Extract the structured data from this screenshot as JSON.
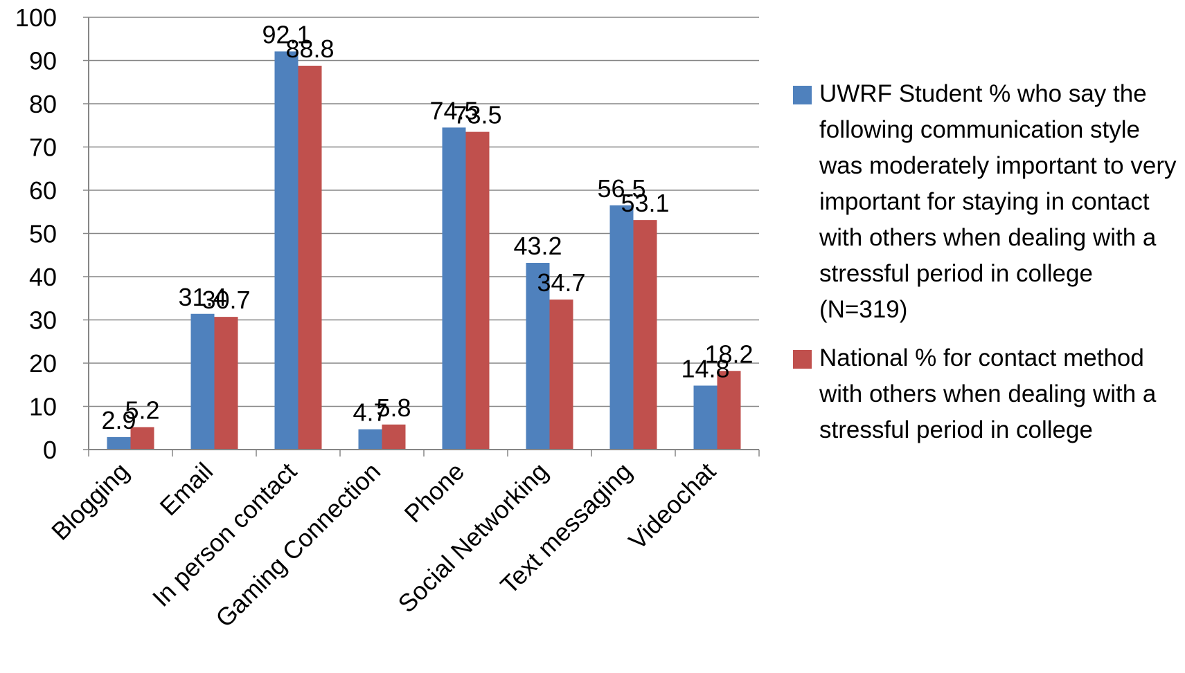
{
  "chart_data": {
    "type": "bar",
    "categories": [
      "Blogging",
      "Email",
      "In person contact",
      "Gaming Connection",
      "Phone",
      "Social Networking",
      "Text messaging",
      "Videochat"
    ],
    "series": [
      {
        "name": "UWRF Student % who say  the following communication style was moderately important to very important for staying in contact with others when dealing with a stressful period in college (N=319)",
        "color": "#4F81BD",
        "values": [
          2.9,
          31.4,
          92.1,
          4.7,
          74.5,
          43.2,
          56.5,
          14.8
        ]
      },
      {
        "name": "National % for contact method with others when dealing with a stressful period in college",
        "color": "#C0504D",
        "values": [
          5.2,
          30.7,
          88.8,
          5.8,
          73.5,
          34.7,
          53.1,
          18.2
        ]
      }
    ],
    "ylim": [
      0,
      100
    ],
    "yticks": [
      "0",
      "10",
      "20",
      "30",
      "40",
      "50",
      "60",
      "70",
      "80",
      "90",
      "100"
    ],
    "grid": true,
    "legend_position": "right",
    "data_labels": true
  }
}
